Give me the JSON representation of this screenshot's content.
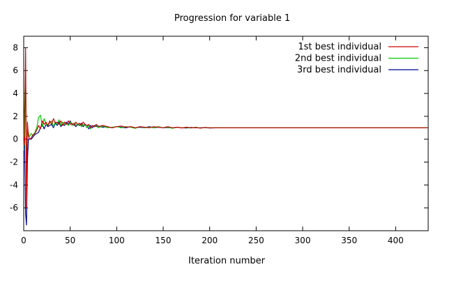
{
  "chart_data": {
    "type": "line",
    "title": "Progression for variable 1",
    "xlabel": "Iteration number",
    "ylabel": "",
    "xlim": [
      0,
      435
    ],
    "ylim": [
      -8,
      9
    ],
    "xticks": [
      0,
      50,
      100,
      150,
      200,
      250,
      300,
      350,
      400
    ],
    "yticks": [
      -6,
      -4,
      -2,
      0,
      2,
      4,
      6,
      8
    ],
    "grid": false,
    "legend_position": "top-right",
    "series": [
      {
        "name": "1st best individual",
        "color": "#cc0000",
        "x": [
          0,
          1,
          2,
          3,
          4,
          5,
          6,
          8,
          10,
          12,
          14,
          16,
          18,
          20,
          22,
          24,
          26,
          28,
          30,
          32,
          34,
          36,
          38,
          40,
          42,
          44,
          46,
          48,
          50,
          52,
          54,
          56,
          58,
          60,
          62,
          64,
          66,
          68,
          70,
          72,
          74,
          76,
          78,
          80,
          85,
          90,
          95,
          100,
          105,
          110,
          115,
          120,
          125,
          130,
          135,
          140,
          145,
          150,
          155,
          160,
          165,
          170,
          175,
          180,
          185,
          190,
          195,
          200,
          210,
          220,
          230,
          240,
          250,
          260,
          270,
          280,
          290,
          300,
          320,
          340,
          360,
          380,
          400,
          420,
          435
        ],
        "y": [
          0.2,
          -0.5,
          8.0,
          -6.0,
          1.5,
          0.3,
          0.0,
          0.1,
          0.4,
          0.5,
          0.8,
          1.2,
          0.9,
          1.6,
          1.3,
          1.5,
          1.2,
          1.6,
          1.3,
          1.8,
          1.4,
          1.5,
          1.3,
          1.6,
          1.2,
          1.5,
          1.3,
          1.6,
          1.3,
          1.4,
          1.2,
          1.5,
          1.3,
          1.4,
          1.2,
          1.5,
          1.3,
          1.2,
          1.3,
          1.0,
          1.2,
          1.1,
          1.3,
          1.1,
          1.2,
          1.1,
          1.0,
          1.1,
          1.15,
          1.05,
          1.1,
          1.0,
          1.1,
          1.05,
          1.0,
          1.1,
          1.05,
          1.0,
          1.1,
          1.0,
          1.05,
          0.98,
          1.05,
          1.0,
          1.02,
          0.97,
          1.03,
          1.0,
          1.0,
          1.0,
          1.0,
          1.0,
          1.0,
          1.0,
          1.0,
          1.0,
          1.0,
          1.0,
          1.0,
          1.0,
          1.0,
          1.0,
          1.0,
          1.0,
          1.0
        ]
      },
      {
        "name": "2nd best individual",
        "color": "#00cc00",
        "x": [
          0,
          1,
          2,
          3,
          4,
          5,
          6,
          8,
          10,
          12,
          14,
          16,
          18,
          20,
          22,
          24,
          26,
          28,
          30,
          32,
          34,
          36,
          38,
          40,
          42,
          44,
          46,
          48,
          50,
          52,
          54,
          56,
          58,
          60,
          62,
          64,
          66,
          68,
          70,
          72,
          74,
          76,
          78,
          80,
          85,
          90,
          95,
          100,
          105,
          110,
          115,
          120,
          125,
          130,
          135,
          140,
          145,
          150,
          155,
          160,
          165,
          170,
          175,
          180,
          185,
          190,
          195,
          200,
          210,
          220,
          230,
          240,
          250,
          260,
          270,
          280,
          290,
          300,
          320,
          340,
          360,
          380,
          400,
          420,
          435
        ],
        "y": [
          -1.0,
          3.0,
          6.0,
          -3.0,
          0.5,
          0.6,
          0.2,
          0.5,
          0.3,
          0.6,
          1.0,
          1.9,
          2.1,
          1.1,
          1.8,
          1.3,
          1.2,
          1.4,
          1.6,
          1.1,
          1.5,
          1.3,
          1.7,
          1.2,
          1.5,
          1.3,
          1.4,
          1.2,
          1.5,
          1.2,
          1.4,
          1.3,
          1.2,
          1.4,
          1.1,
          1.3,
          1.2,
          1.0,
          1.2,
          0.9,
          1.2,
          1.1,
          1.2,
          1.0,
          1.15,
          1.0,
          1.05,
          1.1,
          1.0,
          1.1,
          1.05,
          0.95,
          1.1,
          1.0,
          1.05,
          1.0,
          1.1,
          1.0,
          1.05,
          0.95,
          1.05,
          1.0,
          1.02,
          0.98,
          1.05,
          0.97,
          1.02,
          1.0,
          1.0,
          1.0,
          1.0,
          1.0,
          1.0,
          1.0,
          1.0,
          1.0,
          1.0,
          1.0,
          1.0,
          1.0,
          1.0,
          1.0,
          1.0,
          1.0,
          1.0
        ]
      },
      {
        "name": "3rd best individual",
        "color": "#000099",
        "x": [
          0,
          1,
          2,
          3,
          4,
          5,
          6,
          8,
          10,
          12,
          14,
          16,
          18,
          20,
          22,
          24,
          26,
          28,
          30,
          32,
          34,
          36,
          38,
          40,
          42,
          44,
          46,
          48,
          50,
          52,
          54,
          56,
          58,
          60,
          62,
          64,
          66,
          68,
          70,
          72,
          74,
          76,
          78,
          80,
          85,
          90,
          95,
          100,
          105,
          110,
          115,
          120,
          125,
          130,
          135,
          140,
          145,
          150,
          155,
          160,
          165,
          170,
          175,
          180,
          185,
          190,
          195,
          200,
          210,
          220,
          230,
          240,
          250,
          260,
          270,
          280,
          290,
          300,
          320,
          340,
          360,
          380,
          400,
          420,
          435
        ],
        "y": [
          -0.8,
          -0.5,
          -6.5,
          -7.5,
          -2.0,
          0.0,
          0.0,
          0.0,
          0.2,
          0.4,
          0.5,
          0.6,
          1.0,
          1.3,
          0.9,
          1.3,
          1.1,
          1.2,
          1.3,
          1.0,
          1.4,
          1.2,
          1.5,
          1.1,
          1.3,
          1.2,
          1.5,
          1.3,
          1.6,
          1.2,
          1.4,
          1.1,
          1.3,
          1.2,
          1.4,
          1.1,
          1.3,
          1.2,
          0.9,
          1.2,
          1.0,
          1.2,
          1.1,
          1.15,
          1.05,
          1.1,
          1.0,
          1.1,
          1.05,
          1.0,
          1.1,
          1.0,
          1.05,
          1.0,
          1.1,
          1.0,
          1.05,
          1.0,
          1.02,
          1.0,
          1.05,
          1.0,
          0.98,
          1.03,
          1.0,
          1.0,
          1.02,
          0.98,
          1.0,
          1.0,
          1.0,
          1.0,
          1.0,
          1.0,
          1.0,
          1.0,
          1.0,
          1.0,
          1.0,
          1.0,
          1.0,
          1.0,
          1.0,
          1.0,
          1.0
        ]
      }
    ]
  }
}
